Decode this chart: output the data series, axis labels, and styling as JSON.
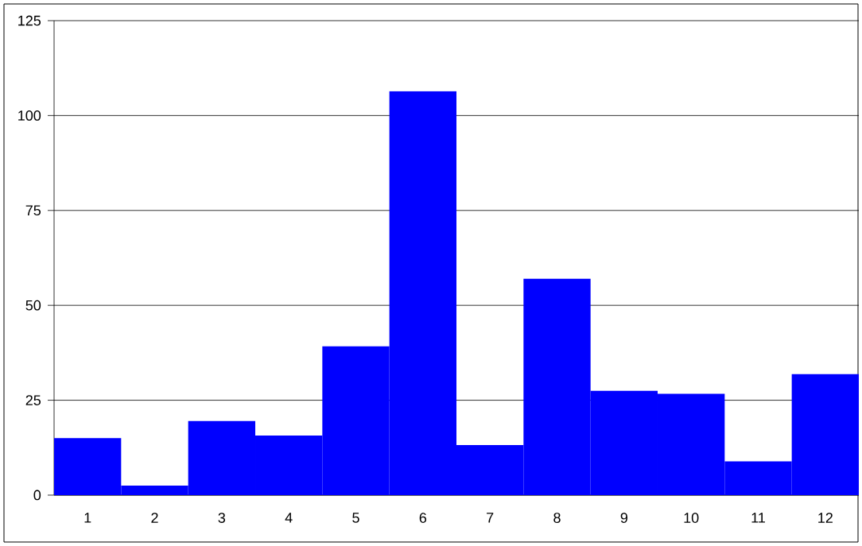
{
  "chart_data": {
    "type": "bar",
    "categories": [
      "1",
      "2",
      "3",
      "4",
      "5",
      "6",
      "7",
      "8",
      "9",
      "10",
      "11",
      "12"
    ],
    "values": [
      15,
      2.5,
      19.5,
      15.7,
      39.2,
      106.4,
      13.2,
      57,
      27.5,
      26.7,
      8.9,
      31.9
    ],
    "color": "#0000ff",
    "ylim": [
      0,
      125
    ],
    "yticks": [
      0,
      25,
      50,
      75,
      100,
      125
    ],
    "grid": "y"
  }
}
